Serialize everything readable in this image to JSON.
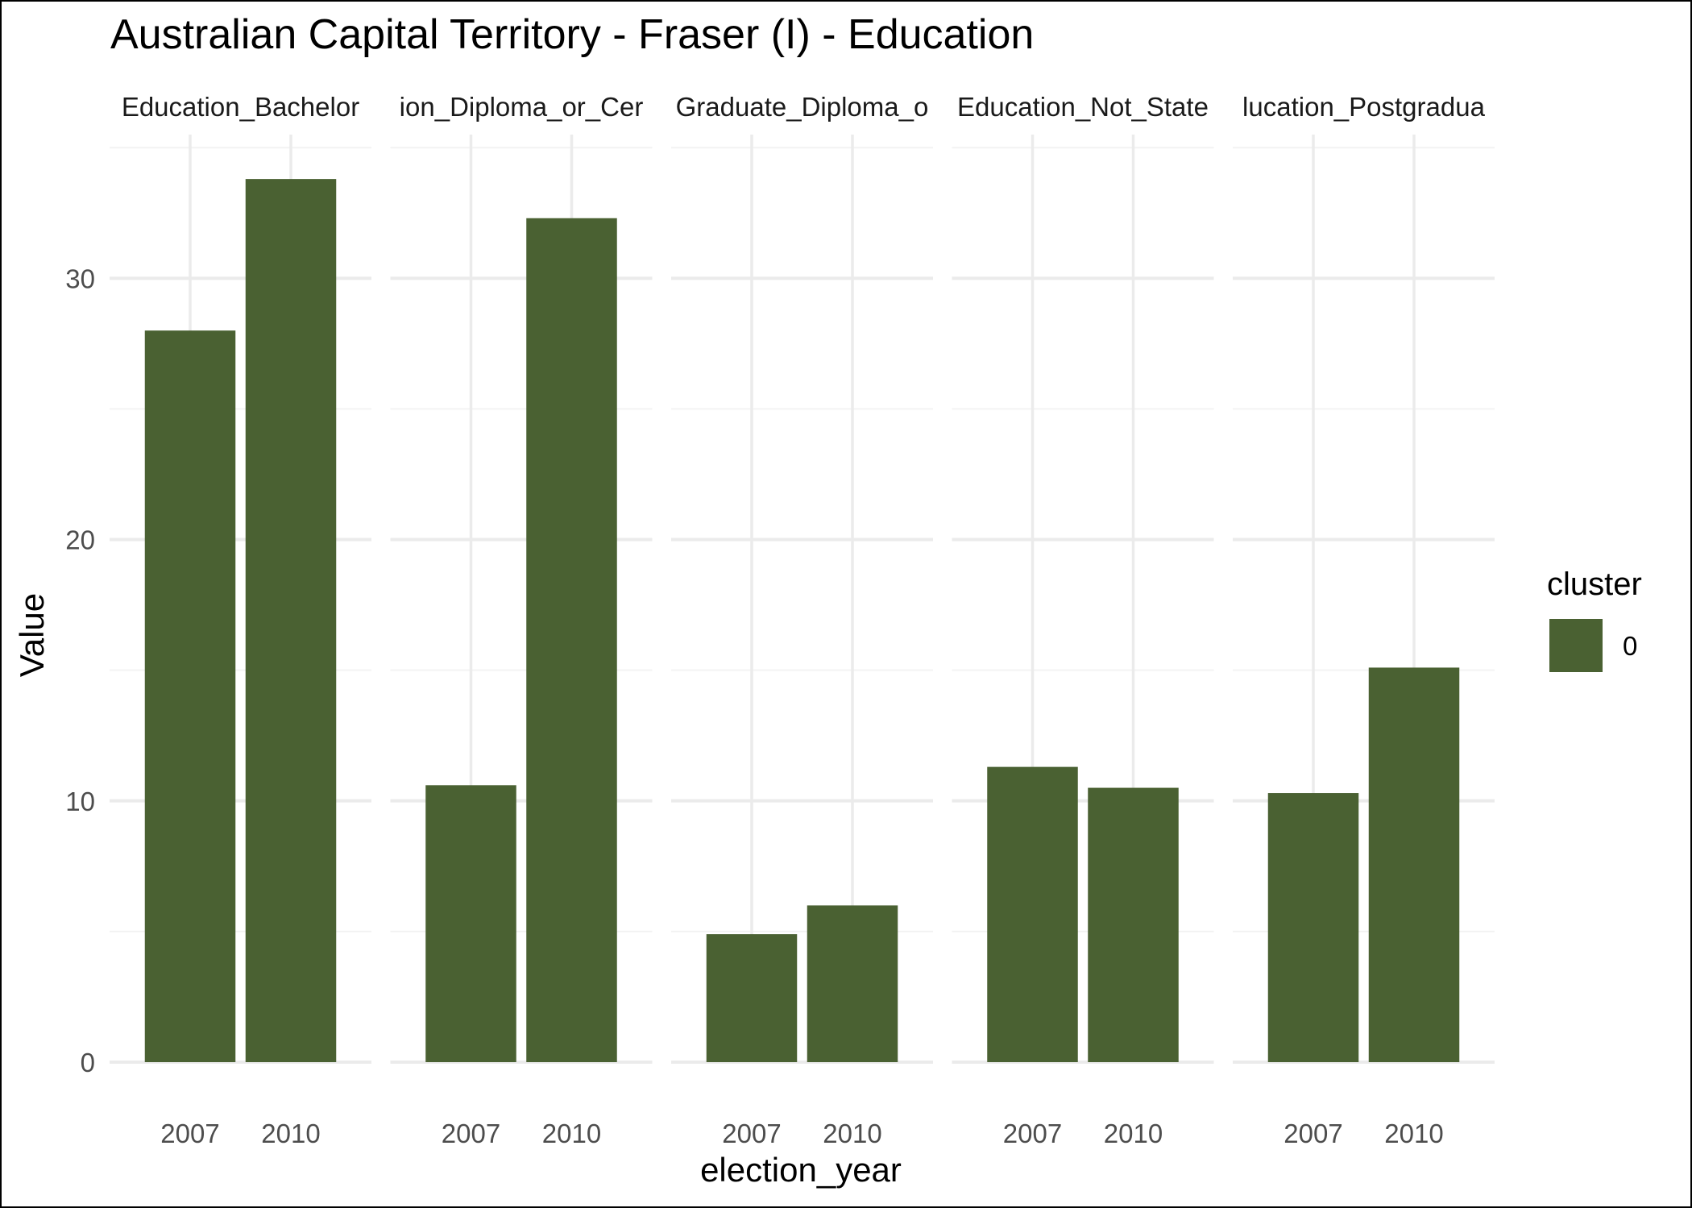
{
  "chart_data": {
    "type": "bar",
    "title": "Australian Capital Territory - Fraser (I) - Education",
    "xlabel": "election_year",
    "ylabel": "Value",
    "ylim": [
      0,
      35.5
    ],
    "y_ticks": [
      0,
      10,
      20,
      30
    ],
    "grid": true,
    "categories": [
      "2007",
      "2010"
    ],
    "facets": [
      {
        "label": "Education_Bachelor",
        "values": [
          28.0,
          33.8
        ]
      },
      {
        "label": "ion_Diploma_or_Cer",
        "values": [
          10.6,
          32.3
        ]
      },
      {
        "label": "Graduate_Diploma_o",
        "values": [
          4.9,
          6.0
        ]
      },
      {
        "label": "Education_Not_State",
        "values": [
          11.3,
          10.5
        ]
      },
      {
        "label": "lucation_Postgradua",
        "values": [
          10.3,
          15.1
        ]
      }
    ],
    "legend": {
      "title": "cluster",
      "position": "right",
      "entries": [
        {
          "label": "0",
          "color": "#4a6132"
        }
      ]
    },
    "colors": {
      "bar": "#4a6132",
      "grid_major": "#ebebeb",
      "grid_minor": "#f3f3f3"
    }
  }
}
